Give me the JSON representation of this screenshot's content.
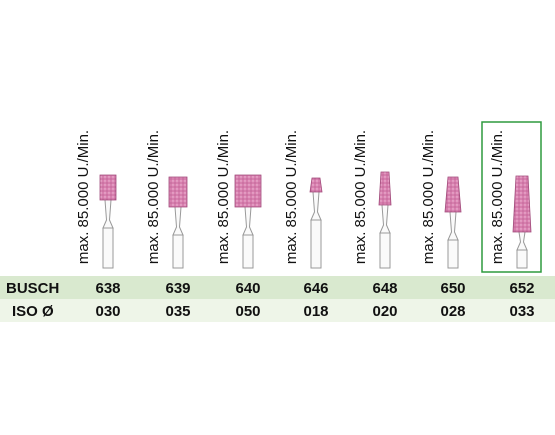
{
  "row_labels": {
    "busch": "BUSCH",
    "iso": "ISO Ø"
  },
  "products": [
    {
      "speed": "max. 85.000 U./Min.",
      "busch": "638",
      "iso": "030"
    },
    {
      "speed": "max. 85.000 U./Min.",
      "busch": "639",
      "iso": "035"
    },
    {
      "speed": "max. 85.000 U./Min.",
      "busch": "640",
      "iso": "050"
    },
    {
      "speed": "max. 85.000 U./Min.",
      "busch": "646",
      "iso": "018"
    },
    {
      "speed": "max. 85.000 U./Min.",
      "busch": "648",
      "iso": "020"
    },
    {
      "speed": "max. 85.000 U./Min.",
      "busch": "650",
      "iso": "028"
    },
    {
      "speed": "max. 85.000 U./Min.",
      "busch": "652",
      "iso": "033"
    }
  ]
}
